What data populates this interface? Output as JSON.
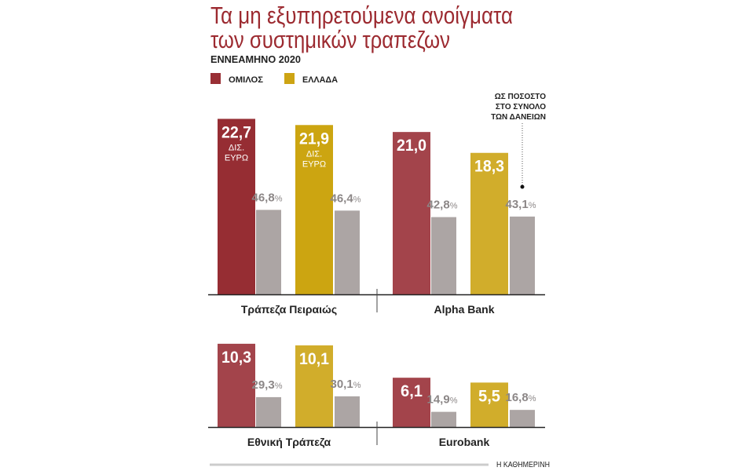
{
  "chart_data": {
    "type": "bar",
    "title": "Τα μη εξυπηρετούμενα ανοίγματα των συστημικών τραπεζών",
    "title_lines": [
      "Τα μη εξυπηρετούμενα ανοίγματα",
      "των συστημικών τραπεζων"
    ],
    "subtitle": "ΕΝΝΕΑΜΗΝΟ 2020",
    "legend": [
      {
        "name": "ΟΜΙΛΟΣ",
        "color": "#992f35"
      },
      {
        "name": "ΕΛΛΑΔΑ",
        "color": "#cda413"
      }
    ],
    "legend_placement": "top-left",
    "annotation_lines": [
      "ΩΣ ΠΟΣΟΣΤΟ",
      "ΣΤΟ ΣΥΝΟΛΟ",
      "ΤΩΝ ΔΑΝΕΙΩΝ"
    ],
    "unit_lines": [
      "ΔΙΣ.",
      "ΕΥΡΩ"
    ],
    "percent_sign": "%",
    "pct_color": "#aca5a4",
    "banks": [
      {
        "name": "Τράπεζα Πειραιώς",
        "group_value": "22,7",
        "group_pct": "46,8",
        "greece_value": "21,9",
        "greece_pct": "46,4",
        "values": [
          22.7,
          46.8,
          21.9,
          46.4
        ],
        "red": "#962d33",
        "gold": "#cca511"
      },
      {
        "name": "Alpha Bank",
        "group_value": "21,0",
        "group_pct": "42,8",
        "greece_value": "18,3",
        "greece_pct": "43,1",
        "values": [
          21.0,
          42.8,
          18.3,
          43.1
        ],
        "red": "#a3444b",
        "gold": "#d1ad2b"
      },
      {
        "name": "Εθνική Τράπεζα",
        "group_value": "10,3",
        "group_pct": "29,3",
        "greece_value": "10,1",
        "greece_pct": "30,1",
        "values": [
          10.3,
          29.3,
          10.1,
          30.1
        ],
        "red": "#a3444b",
        "gold": "#d1ad2b"
      },
      {
        "name": "Eurobank",
        "group_value": "6,1",
        "group_pct": "14,9",
        "greece_value": "5,5",
        "greece_pct": "16,8",
        "values": [
          6.1,
          14.9,
          5.5,
          16.8
        ],
        "red": "#a3444b",
        "gold": "#d1ad2b"
      }
    ],
    "source": "Η ΚΑΘΗΜΕΡΙΝΗ"
  }
}
